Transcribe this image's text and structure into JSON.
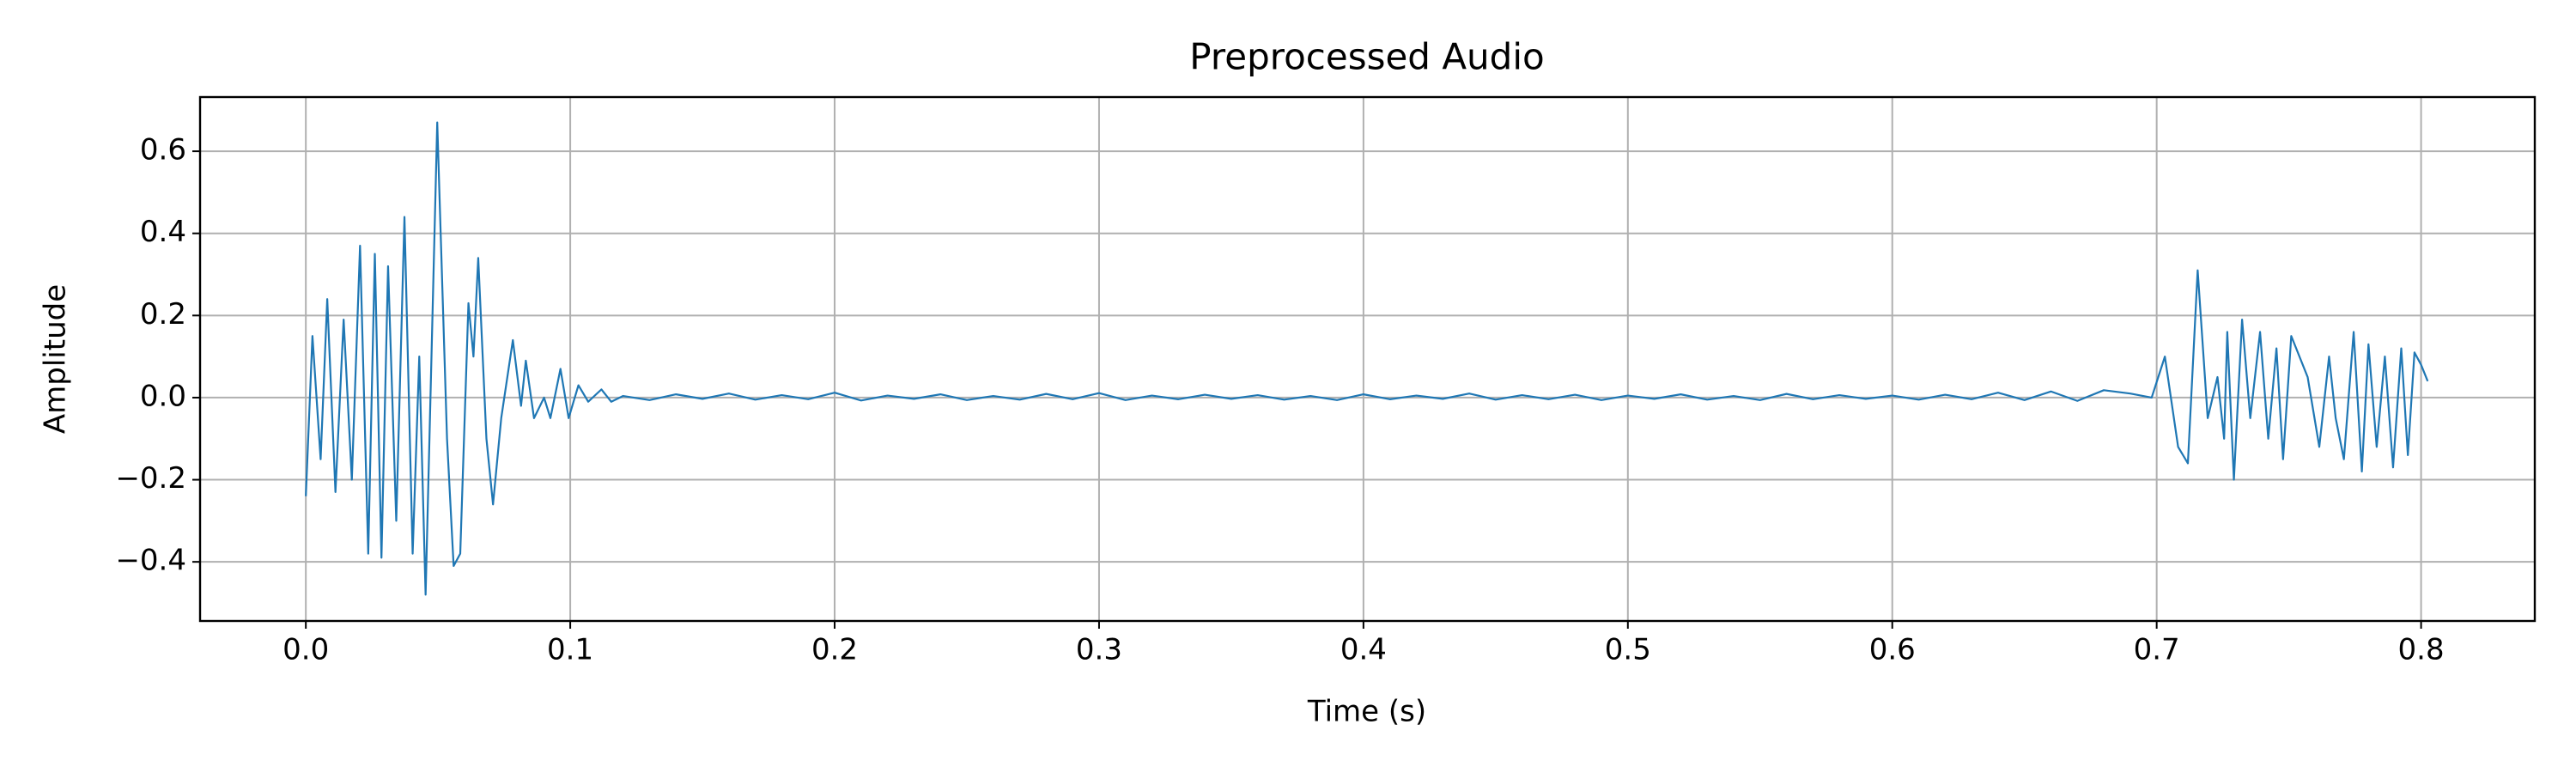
{
  "chart_data": {
    "type": "line",
    "title": "Preprocessed Audio",
    "x_label": "Time (s)",
    "y_label": "Amplitude",
    "x": [
      0,
      0.0025,
      0.0056,
      0.0081,
      0.0112,
      0.0143,
      0.0174,
      0.0205,
      0.0236,
      0.0261,
      0.0286,
      0.0311,
      0.0342,
      0.0373,
      0.0404,
      0.0429,
      0.0453,
      0.0497,
      0.0534,
      0.0559,
      0.0584,
      0.0615,
      0.0634,
      0.0652,
      0.0683,
      0.0708,
      0.0739,
      0.0783,
      0.0814,
      0.0832,
      0.0863,
      0.0901,
      0.0925,
      0.0963,
      0.0994,
      0.1031,
      0.1068,
      0.1118,
      0.1155,
      0.12,
      0.13,
      0.14,
      0.15,
      0.16,
      0.17,
      0.18,
      0.19,
      0.2,
      0.21,
      0.22,
      0.23,
      0.24,
      0.25,
      0.26,
      0.27,
      0.28,
      0.29,
      0.3,
      0.31,
      0.32,
      0.33,
      0.34,
      0.35,
      0.36,
      0.37,
      0.38,
      0.39,
      0.4,
      0.41,
      0.42,
      0.43,
      0.44,
      0.45,
      0.46,
      0.47,
      0.48,
      0.49,
      0.5,
      0.51,
      0.52,
      0.53,
      0.54,
      0.55,
      0.56,
      0.57,
      0.58,
      0.59,
      0.6,
      0.61,
      0.62,
      0.63,
      0.64,
      0.65,
      0.66,
      0.67,
      0.68,
      0.69,
      0.6981,
      0.7031,
      0.7081,
      0.7118,
      0.7155,
      0.7193,
      0.723,
      0.7255,
      0.7267,
      0.7292,
      0.7323,
      0.7354,
      0.7391,
      0.7422,
      0.7453,
      0.7478,
      0.7509,
      0.754,
      0.7571,
      0.7615,
      0.7652,
      0.7677,
      0.7708,
      0.7745,
      0.7776,
      0.7801,
      0.7832,
      0.7863,
      0.7894,
      0.7925,
      0.795,
      0.7975,
      0.8,
      0.8025
    ],
    "series": [
      {
        "color": "#1f77b4",
        "values": [
          -0.24,
          0.15,
          -0.15,
          0.24,
          -0.23,
          0.19,
          -0.2,
          0.37,
          -0.38,
          0.35,
          -0.39,
          0.32,
          -0.3,
          0.44,
          -0.38,
          0.1,
          -0.48,
          0.67,
          -0.1,
          -0.41,
          -0.38,
          0.23,
          0.1,
          0.34,
          -0.1,
          -0.26,
          -0.05,
          0.14,
          -0.02,
          0.09,
          -0.05,
          0.0,
          -0.05,
          0.07,
          -0.05,
          0.03,
          -0.01,
          0.02,
          -0.01,
          0.004,
          -0.006,
          0.008,
          -0.003,
          0.01,
          -0.005,
          0.006,
          -0.004,
          0.012,
          -0.007,
          0.005,
          -0.003,
          0.008,
          -0.006,
          0.004,
          -0.005,
          0.009,
          -0.004,
          0.011,
          -0.006,
          0.005,
          -0.004,
          0.007,
          -0.003,
          0.006,
          -0.005,
          0.004,
          -0.006,
          0.008,
          -0.004,
          0.005,
          -0.003,
          0.01,
          -0.005,
          0.006,
          -0.004,
          0.007,
          -0.006,
          0.005,
          -0.003,
          0.008,
          -0.005,
          0.004,
          -0.006,
          0.009,
          -0.004,
          0.006,
          -0.003,
          0.005,
          -0.005,
          0.007,
          -0.004,
          0.012,
          -0.006,
          0.015,
          -0.008,
          0.018,
          0.01,
          0.0,
          0.1,
          -0.12,
          -0.16,
          0.31,
          -0.05,
          0.05,
          -0.1,
          0.16,
          -0.2,
          0.19,
          -0.05,
          0.16,
          -0.1,
          0.12,
          -0.15,
          0.15,
          0.1,
          0.05,
          -0.12,
          0.1,
          -0.05,
          -0.15,
          0.16,
          -0.18,
          0.13,
          -0.12,
          0.1,
          -0.17,
          0.12,
          -0.14,
          0.11,
          0.08,
          0.04
        ]
      }
    ],
    "xlim": [
      -0.04,
      0.843
    ],
    "ylim": [
      -0.544,
      0.732
    ],
    "xticks": [
      {
        "value": 0,
        "label": "0.0"
      },
      0.1,
      0.2,
      0.3,
      0.4,
      0.5,
      0.6,
      0.7,
      0.8
    ],
    "yticks": [
      {
        "value": -0.4,
        "label": "−0.4"
      },
      {
        "value": -0.2,
        "label": "−0.2"
      },
      {
        "value": 0,
        "label": "0.0"
      },
      0.2,
      0.4,
      0.6
    ],
    "grid": true
  }
}
